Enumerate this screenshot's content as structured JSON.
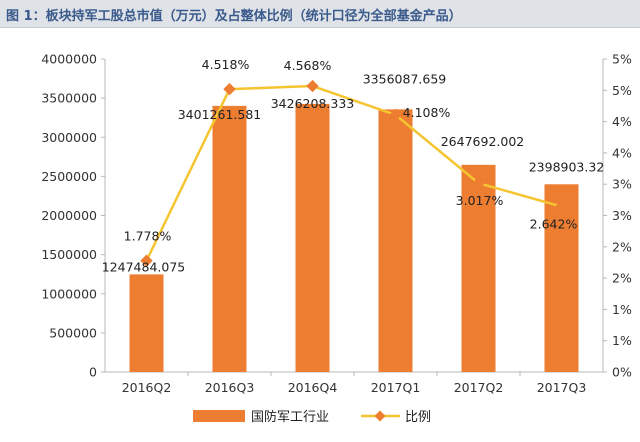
{
  "figure_title": "图 1：板块持军工股总市值（万元）及占整体比例（统计口径为全部基金产品）",
  "colors": {
    "bar": "#ED7D31",
    "line": "#F5C431",
    "marker": "#ED7D31",
    "axis": "#b8b8b8"
  },
  "chart_data": {
    "type": "bar",
    "categories": [
      "2016Q2",
      "2016Q3",
      "2016Q4",
      "2017Q1",
      "2017Q2",
      "2017Q3"
    ],
    "series": [
      {
        "name": "国防军工行业",
        "type": "bar",
        "axis": "left",
        "values": [
          1247484.075,
          3401261.581,
          3426208.333,
          3356087.659,
          2647692.002,
          2398903.32
        ],
        "labels": [
          "1247484.075",
          "3401261.581",
          "3426208.333",
          "3356087.659",
          "2647692.002",
          "2398903.32"
        ]
      },
      {
        "name": "比例",
        "type": "line",
        "axis": "right",
        "values": [
          1.778,
          4.518,
          4.568,
          4.108,
          3.017,
          2.642
        ],
        "labels": [
          "1.778%",
          "4.518%",
          "4.568%",
          "4.108%",
          "3.017%",
          "2.642%"
        ]
      }
    ],
    "y_left": {
      "ylim": [
        0,
        4000000
      ],
      "ticks": [
        "0",
        "500000",
        "1000000",
        "1500000",
        "2000000",
        "2500000",
        "3000000",
        "3500000",
        "4000000"
      ]
    },
    "y_right": {
      "ylim": [
        0,
        5
      ],
      "ticks": [
        "0%",
        "1%",
        "1%",
        "2%",
        "2%",
        "3%",
        "3%",
        "4%",
        "4%",
        "5%",
        "5%"
      ]
    },
    "grid": false,
    "legend": "bottom"
  }
}
